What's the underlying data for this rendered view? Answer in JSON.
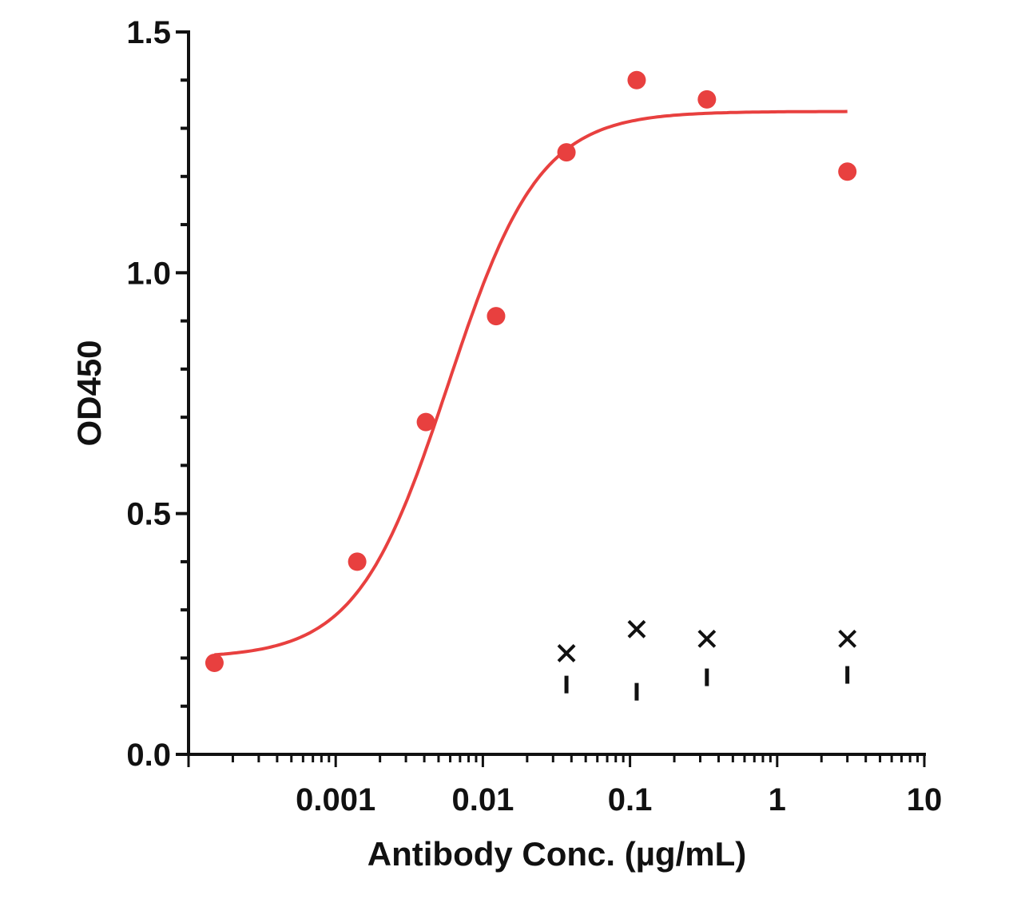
{
  "chart_data": {
    "type": "scatter",
    "title": "",
    "xlabel": "Antibody Conc. (µg/mL)",
    "ylabel": "OD450",
    "xscale": "log",
    "xlim": [
      0.0001,
      10
    ],
    "ylim": [
      0,
      1.5
    ],
    "x_tick_labels": [
      {
        "value": 0.001,
        "label": "0.001"
      },
      {
        "value": 0.01,
        "label": "0.01"
      },
      {
        "value": 0.1,
        "label": "0.1"
      },
      {
        "value": 1,
        "label": "1"
      },
      {
        "value": 10,
        "label": "10"
      }
    ],
    "y_tick_labels": [
      {
        "value": 0,
        "label": "0.0"
      },
      {
        "value": 0.5,
        "label": "0.5"
      },
      {
        "value": 1.0,
        "label": "1.0"
      },
      {
        "value": 1.5,
        "label": "1.5"
      }
    ],
    "grid": false,
    "legend": "none",
    "series": [
      {
        "marker": "circle",
        "color": "#e8403f",
        "points": [
          {
            "x": 0.00015,
            "y": 0.19
          },
          {
            "x": 0.0014,
            "y": 0.4
          },
          {
            "x": 0.0041,
            "y": 0.69
          },
          {
            "x": 0.0123,
            "y": 0.91
          },
          {
            "x": 0.037,
            "y": 1.25
          },
          {
            "x": 0.111,
            "y": 1.4
          },
          {
            "x": 0.333,
            "y": 1.36
          },
          {
            "x": 3.0,
            "y": 1.21
          }
        ],
        "fit": {
          "model": "4PL",
          "bottom": 0.2,
          "top": 1.335,
          "ec50": 0.0058,
          "hill": 1.4,
          "x_range": [
            0.00015,
            3.0
          ]
        }
      },
      {
        "marker": "x",
        "color": "#111111",
        "points": [
          {
            "x": 0.037,
            "y": 0.21
          },
          {
            "x": 0.111,
            "y": 0.26
          },
          {
            "x": 0.333,
            "y": 0.24
          },
          {
            "x": 3.0,
            "y": 0.24
          }
        ]
      },
      {
        "marker": "dash",
        "color": "#111111",
        "points": [
          {
            "x": 0.037,
            "y": 0.145
          },
          {
            "x": 0.111,
            "y": 0.13
          },
          {
            "x": 0.333,
            "y": 0.16
          },
          {
            "x": 3.0,
            "y": 0.165
          }
        ]
      }
    ]
  }
}
